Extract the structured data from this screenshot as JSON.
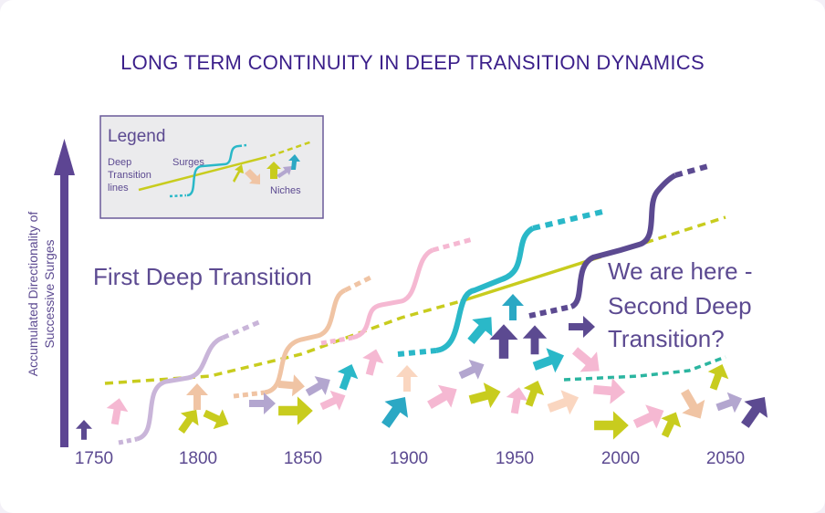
{
  "title": "LONG TERM CONTINUITY IN DEEP TRANSITION DYNAMICS",
  "y_axis_label_line1": "Accumulated Directionality of",
  "y_axis_label_line2": "Successive Surges",
  "x_axis_ticks": [
    "1750",
    "1800",
    "1850",
    "1900",
    "1950",
    "2000",
    "2050"
  ],
  "first_label": "First Deep Transition",
  "second_label_line1": "We are here -",
  "second_label_line2": "Second Deep",
  "second_label_line3": "Transition?",
  "legend": {
    "title": "Legend",
    "deep_line1": "Deep",
    "deep_line2": "Transition",
    "deep_line3": "lines",
    "surges": "Surges",
    "niches": "Niches"
  },
  "colors": {
    "title": "#3b1f8a",
    "text": "#5c4a91",
    "axis": "#5d4593",
    "deep_transition_line": "#c8cc1e",
    "second_transition_line": "#2bb5a0",
    "surge_colors": [
      "#c9b5d9",
      "#f0c4a4",
      "#f5b8d2",
      "#2ab8c8",
      "#5c4a91"
    ],
    "niche_colors": [
      "#5c4a91",
      "#f5b8d2",
      "#c8cc1e",
      "#f0c4a4",
      "#b3a6cf",
      "#2ba8c4"
    ]
  }
}
